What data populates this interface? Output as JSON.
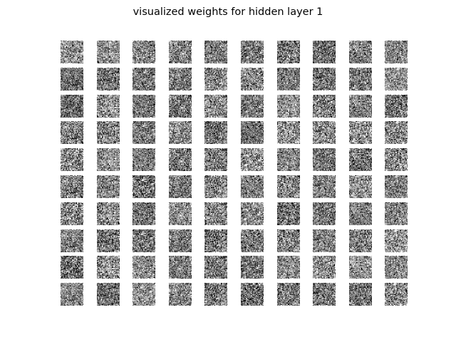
{
  "chart_data": {
    "type": "heatmap",
    "title": "visualized weights for hidden layer 1",
    "rows": 10,
    "columns": 10,
    "tile_count": 100,
    "tile_resolution": 28,
    "colormap": "gray",
    "axes_visible": false,
    "grid": false
  }
}
